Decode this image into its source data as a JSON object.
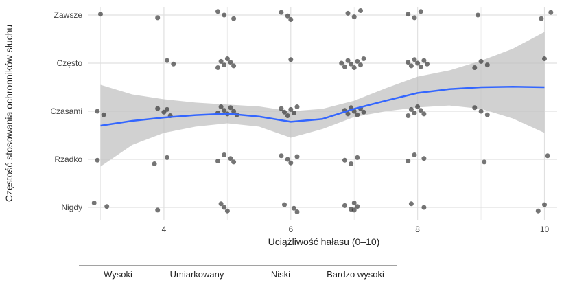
{
  "chart_data": {
    "type": "scatter",
    "title": "",
    "xlabel": "Uciążliwość hałasu (0–10)",
    "ylabel": "Częstość stosowania ochronników słuchu",
    "xlim": [
      2.8,
      10.2
    ],
    "x_ticks": [
      4,
      6,
      8,
      10
    ],
    "y_categories": [
      "Nigdy",
      "Rzadko",
      "Czasami",
      "Często",
      "Zawsze"
    ],
    "grid": true,
    "legend": "none",
    "points": [
      {
        "x": 2.9,
        "y": "Nigdy"
      },
      {
        "x": 3.1,
        "y": "Nigdy"
      },
      {
        "x": 3.9,
        "y": "Nigdy"
      },
      {
        "x": 4.9,
        "y": "Nigdy"
      },
      {
        "x": 4.95,
        "y": "Nigdy"
      },
      {
        "x": 5.0,
        "y": "Nigdy"
      },
      {
        "x": 5.9,
        "y": "Nigdy"
      },
      {
        "x": 6.05,
        "y": "Nigdy"
      },
      {
        "x": 6.1,
        "y": "Nigdy"
      },
      {
        "x": 6.85,
        "y": "Nigdy"
      },
      {
        "x": 6.95,
        "y": "Nigdy"
      },
      {
        "x": 7.0,
        "y": "Nigdy"
      },
      {
        "x": 7.05,
        "y": "Nigdy"
      },
      {
        "x": 7.0,
        "y": "Nigdy"
      },
      {
        "x": 7.9,
        "y": "Nigdy"
      },
      {
        "x": 8.1,
        "y": "Nigdy"
      },
      {
        "x": 9.9,
        "y": "Nigdy"
      },
      {
        "x": 10.0,
        "y": "Nigdy"
      },
      {
        "x": 2.95,
        "y": "Rzadko"
      },
      {
        "x": 3.85,
        "y": "Rzadko"
      },
      {
        "x": 4.05,
        "y": "Rzadko"
      },
      {
        "x": 4.85,
        "y": "Rzadko"
      },
      {
        "x": 4.95,
        "y": "Rzadko"
      },
      {
        "x": 5.05,
        "y": "Rzadko"
      },
      {
        "x": 5.1,
        "y": "Rzadko"
      },
      {
        "x": 5.85,
        "y": "Rzadko"
      },
      {
        "x": 5.95,
        "y": "Rzadko"
      },
      {
        "x": 6.0,
        "y": "Rzadko"
      },
      {
        "x": 6.1,
        "y": "Rzadko"
      },
      {
        "x": 6.85,
        "y": "Rzadko"
      },
      {
        "x": 6.95,
        "y": "Rzadko"
      },
      {
        "x": 7.05,
        "y": "Rzadko"
      },
      {
        "x": 7.85,
        "y": "Rzadko"
      },
      {
        "x": 7.95,
        "y": "Rzadko"
      },
      {
        "x": 8.1,
        "y": "Rzadko"
      },
      {
        "x": 9.05,
        "y": "Rzadko"
      },
      {
        "x": 10.05,
        "y": "Rzadko"
      },
      {
        "x": 2.95,
        "y": "Czasami"
      },
      {
        "x": 3.05,
        "y": "Czasami"
      },
      {
        "x": 3.9,
        "y": "Czasami"
      },
      {
        "x": 4.0,
        "y": "Czasami"
      },
      {
        "x": 4.1,
        "y": "Czasami"
      },
      {
        "x": 4.05,
        "y": "Czasami"
      },
      {
        "x": 4.85,
        "y": "Czasami"
      },
      {
        "x": 4.9,
        "y": "Czasami"
      },
      {
        "x": 4.95,
        "y": "Czasami"
      },
      {
        "x": 5.0,
        "y": "Czasami"
      },
      {
        "x": 5.05,
        "y": "Czasami"
      },
      {
        "x": 5.1,
        "y": "Czasami"
      },
      {
        "x": 5.15,
        "y": "Czasami"
      },
      {
        "x": 5.85,
        "y": "Czasami"
      },
      {
        "x": 5.9,
        "y": "Czasami"
      },
      {
        "x": 5.95,
        "y": "Czasami"
      },
      {
        "x": 6.0,
        "y": "Czasami"
      },
      {
        "x": 6.05,
        "y": "Czasami"
      },
      {
        "x": 6.1,
        "y": "Czasami"
      },
      {
        "x": 6.85,
        "y": "Czasami"
      },
      {
        "x": 6.9,
        "y": "Czasami"
      },
      {
        "x": 6.95,
        "y": "Czasami"
      },
      {
        "x": 7.0,
        "y": "Czasami"
      },
      {
        "x": 7.05,
        "y": "Czasami"
      },
      {
        "x": 7.1,
        "y": "Czasami"
      },
      {
        "x": 7.15,
        "y": "Czasami"
      },
      {
        "x": 7.85,
        "y": "Czasami"
      },
      {
        "x": 7.9,
        "y": "Czasami"
      },
      {
        "x": 7.95,
        "y": "Czasami"
      },
      {
        "x": 8.0,
        "y": "Czasami"
      },
      {
        "x": 8.05,
        "y": "Czasami"
      },
      {
        "x": 8.1,
        "y": "Czasami"
      },
      {
        "x": 8.9,
        "y": "Czasami"
      },
      {
        "x": 9.0,
        "y": "Czasami"
      },
      {
        "x": 9.1,
        "y": "Czasami"
      },
      {
        "x": 4.05,
        "y": "Często"
      },
      {
        "x": 4.15,
        "y": "Często"
      },
      {
        "x": 4.85,
        "y": "Często"
      },
      {
        "x": 4.9,
        "y": "Często"
      },
      {
        "x": 4.95,
        "y": "Często"
      },
      {
        "x": 5.0,
        "y": "Często"
      },
      {
        "x": 5.05,
        "y": "Często"
      },
      {
        "x": 5.1,
        "y": "Często"
      },
      {
        "x": 6.0,
        "y": "Często"
      },
      {
        "x": 6.8,
        "y": "Często"
      },
      {
        "x": 6.85,
        "y": "Często"
      },
      {
        "x": 6.9,
        "y": "Często"
      },
      {
        "x": 6.95,
        "y": "Często"
      },
      {
        "x": 7.0,
        "y": "Często"
      },
      {
        "x": 7.05,
        "y": "Często"
      },
      {
        "x": 7.1,
        "y": "Często"
      },
      {
        "x": 7.15,
        "y": "Często"
      },
      {
        "x": 7.85,
        "y": "Często"
      },
      {
        "x": 7.9,
        "y": "Często"
      },
      {
        "x": 7.95,
        "y": "Często"
      },
      {
        "x": 8.0,
        "y": "Często"
      },
      {
        "x": 8.05,
        "y": "Często"
      },
      {
        "x": 8.1,
        "y": "Często"
      },
      {
        "x": 8.15,
        "y": "Często"
      },
      {
        "x": 8.9,
        "y": "Często"
      },
      {
        "x": 9.0,
        "y": "Często"
      },
      {
        "x": 9.1,
        "y": "Często"
      },
      {
        "x": 10.0,
        "y": "Często"
      },
      {
        "x": 3.0,
        "y": "Zawsze"
      },
      {
        "x": 3.9,
        "y": "Zawsze"
      },
      {
        "x": 4.85,
        "y": "Zawsze"
      },
      {
        "x": 4.95,
        "y": "Zawsze"
      },
      {
        "x": 5.1,
        "y": "Zawsze"
      },
      {
        "x": 5.85,
        "y": "Zawsze"
      },
      {
        "x": 5.95,
        "y": "Zawsze"
      },
      {
        "x": 6.0,
        "y": "Zawsze"
      },
      {
        "x": 6.9,
        "y": "Zawsze"
      },
      {
        "x": 7.0,
        "y": "Zawsze"
      },
      {
        "x": 7.1,
        "y": "Zawsze"
      },
      {
        "x": 7.85,
        "y": "Zawsze"
      },
      {
        "x": 7.95,
        "y": "Zawsze"
      },
      {
        "x": 8.05,
        "y": "Zawsze"
      },
      {
        "x": 8.95,
        "y": "Zawsze"
      },
      {
        "x": 9.95,
        "y": "Zawsze"
      },
      {
        "x": 10.1,
        "y": "Zawsze"
      }
    ],
    "smooth_line": {
      "x": [
        3.0,
        3.5,
        4.0,
        4.5,
        5.0,
        5.5,
        6.0,
        6.5,
        7.0,
        7.5,
        8.0,
        8.5,
        9.0,
        9.5,
        10.0
      ],
      "y": [
        1.7,
        1.8,
        1.87,
        1.92,
        1.95,
        1.89,
        1.78,
        1.84,
        2.05,
        2.22,
        2.38,
        2.46,
        2.5,
        2.51,
        2.5
      ],
      "ci_upper": [
        2.55,
        2.35,
        2.25,
        2.18,
        2.14,
        2.1,
        2.0,
        2.05,
        2.22,
        2.48,
        2.72,
        2.85,
        3.05,
        3.3,
        3.65
      ],
      "ci_lower": [
        0.85,
        1.3,
        1.55,
        1.68,
        1.75,
        1.68,
        1.45,
        1.63,
        1.88,
        2.0,
        2.08,
        2.12,
        2.05,
        1.85,
        1.55
      ]
    },
    "colors": {
      "line": "#3366FF",
      "ribbon": "#BEBEBE",
      "points": "#2b2b2b",
      "grid": "#EBEBEB"
    },
    "bottom_labels": [
      "Wysoki",
      "Umiarkowany",
      "Niski",
      "Bardzo wysoki"
    ]
  }
}
